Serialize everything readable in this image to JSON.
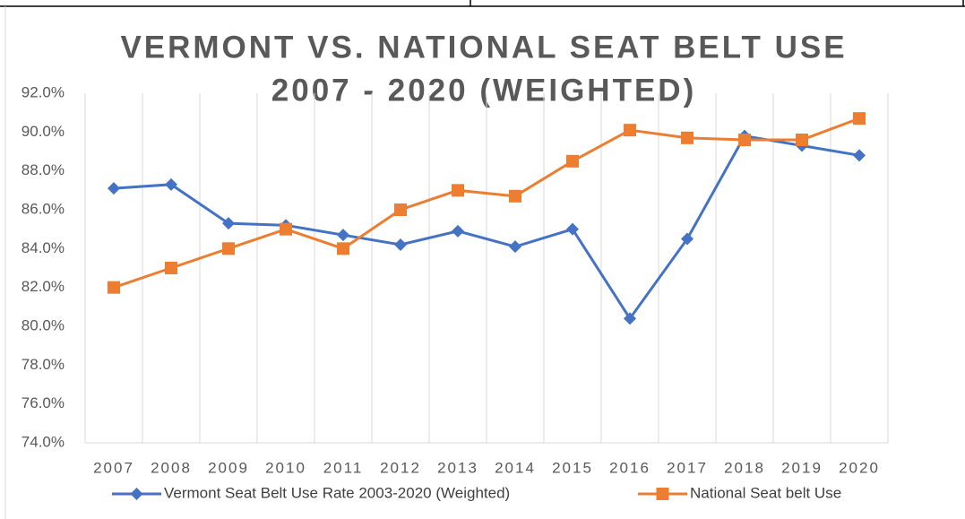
{
  "chart_data": {
    "type": "line",
    "title": [
      "VERMONT VS. NATIONAL SEAT BELT USE",
      "2007 - 2020 (WEIGHTED)"
    ],
    "categories": [
      "2007",
      "2008",
      "2009",
      "2010",
      "2011",
      "2012",
      "2013",
      "2014",
      "2015",
      "2016",
      "2017",
      "2018",
      "2019",
      "2020"
    ],
    "series": [
      {
        "name": "Vermont Seat Belt Use Rate 2003-2020 (Weighted)",
        "color": "#4472c4",
        "marker": "diamond",
        "values": [
          87.1,
          87.3,
          85.3,
          85.2,
          84.7,
          84.2,
          84.9,
          84.1,
          85.0,
          80.4,
          84.5,
          89.8,
          89.3,
          88.8
        ]
      },
      {
        "name": "National Seat belt Use",
        "color": "#ed7d31",
        "marker": "square",
        "values": [
          82.0,
          83.0,
          84.0,
          85.0,
          84.0,
          86.0,
          87.0,
          86.7,
          88.5,
          90.1,
          89.7,
          89.6,
          89.6,
          90.7
        ]
      }
    ],
    "ylim": [
      74,
      92
    ],
    "yticks": [
      {
        "value": 74,
        "label": "74.0%"
      },
      {
        "value": 76,
        "label": "76.0%"
      },
      {
        "value": 78,
        "label": "78.0%"
      },
      {
        "value": 80,
        "label": "80.0%"
      },
      {
        "value": 82,
        "label": "82.0%"
      },
      {
        "value": 84,
        "label": "84.0%"
      },
      {
        "value": 86,
        "label": "86.0%"
      },
      {
        "value": 88,
        "label": "88.0%"
      },
      {
        "value": 90,
        "label": "90.0%"
      },
      {
        "value": 92,
        "label": "92.0%"
      }
    ],
    "legend": "bottom"
  }
}
